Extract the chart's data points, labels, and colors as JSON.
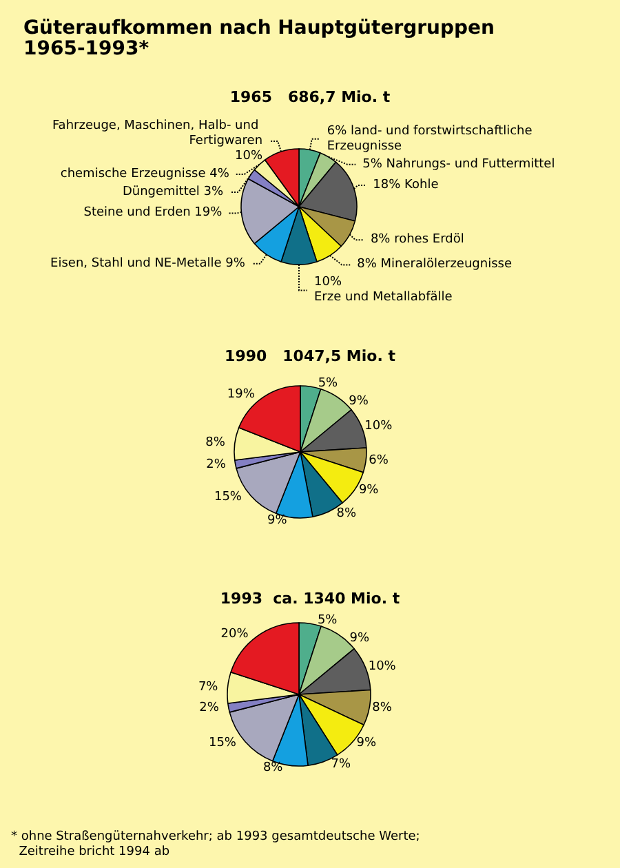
{
  "chart_data": [
    {
      "type": "pie",
      "title": "Güteraufkommen nach Hauptgütergruppen\n1965-1993*",
      "subtitle": "1965   686,7 Mio. t",
      "categories": [
        "land- und forstwirtschaftliche Erzeugnisse",
        "Nahrungs- und Futtermittel",
        "Kohle",
        "rohes Erdöl",
        "Mineralölerzeugnisse",
        "Erze und Metallabfälle",
        "Eisen, Stahl und NE-Metalle",
        "Steine und Erden",
        "Düngemittel",
        "chemische Erzeugnisse",
        "Fahrzeuge, Maschinen, Halb- und Fertigwaren"
      ],
      "values": [
        6,
        5,
        18,
        8,
        8,
        10,
        9,
        19,
        3,
        4,
        10
      ],
      "value_labels": [
        "6%",
        "5%",
        "18%",
        "8%",
        "8%",
        "10%",
        "9%",
        "19%",
        "3%",
        "4%",
        "10%"
      ],
      "colors": [
        "#4fae8c",
        "#a6cb8a",
        "#5e5e5e",
        "#a89646",
        "#f4ec10",
        "#107089",
        "#14a0e0",
        "#a8a8be",
        "#8480c4",
        "#f8f4a0",
        "#e41a22"
      ],
      "legend": false
    },
    {
      "type": "pie",
      "title": "1990   1047,5 Mio. t",
      "categories": [
        null,
        null,
        null,
        null,
        null,
        null,
        null,
        null,
        null,
        null,
        null
      ],
      "values": [
        5,
        9,
        10,
        6,
        9,
        8,
        9,
        15,
        2,
        8,
        19
      ],
      "value_labels": [
        "5%",
        "9%",
        "10%",
        "6%",
        "9%",
        "8%",
        "9%",
        "15%",
        "2%",
        "8%",
        "19%"
      ],
      "colors": [
        "#4fae8c",
        "#a6cb8a",
        "#5e5e5e",
        "#a89646",
        "#f4ec10",
        "#107089",
        "#14a0e0",
        "#a8a8be",
        "#8480c4",
        "#f8f4a0",
        "#e41a22"
      ],
      "legend": false
    },
    {
      "type": "pie",
      "title": "1993  ca. 1340 Mio. t",
      "categories": [
        null,
        null,
        null,
        null,
        null,
        null,
        null,
        null,
        null,
        null,
        null
      ],
      "values": [
        5,
        9,
        10,
        8,
        9,
        7,
        8,
        15,
        2,
        7,
        20
      ],
      "value_labels": [
        "5%",
        "9%",
        "10%",
        "8%",
        "9%",
        "7%",
        "8%",
        "15%",
        "2%",
        "7%",
        "20%"
      ],
      "colors": [
        "#4fae8c",
        "#a6cb8a",
        "#5e5e5e",
        "#a89646",
        "#f4ec10",
        "#107089",
        "#14a0e0",
        "#a8a8be",
        "#8480c4",
        "#f8f4a0",
        "#e41a22"
      ],
      "legend": false,
      "annotations": [
        "* ohne Straßengüternahverkehr; ab 1993 gesamtdeutsche Werte;\n  Zeitreihe bricht 1994 ab"
      ]
    }
  ]
}
